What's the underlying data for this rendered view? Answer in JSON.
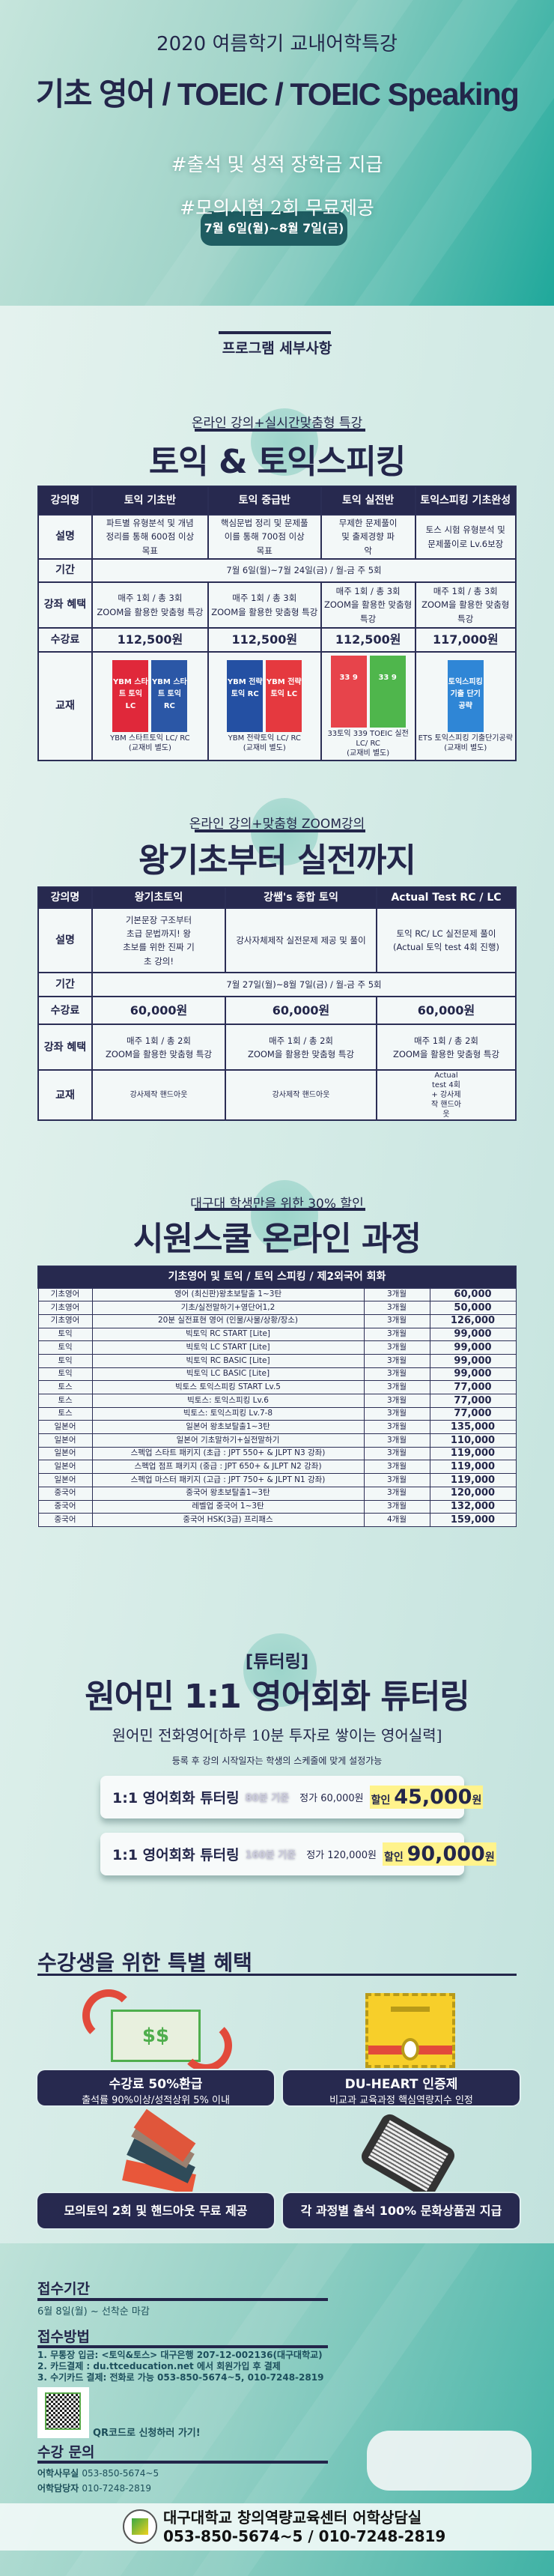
{
  "hero": {
    "subtitle": "2020 여름학기 교내어학특강",
    "title": "기초 영어 / TOEIC / TOEIC Speaking",
    "date": "7월 6일(월)~8월 7일(금)",
    "tag1": "#출석 및 성적 장학금 지급",
    "tag2": "#모의시험 2회 무료제공"
  },
  "program_heading": "프로그램 세부사항",
  "sec1": {
    "sub": "온라인 강의+실시간맞춤형 특강",
    "title": "토익 & 토익스피킹",
    "labels": {
      "name": "강의명",
      "desc": "설명",
      "period": "기간",
      "benefit": "강좌 혜택",
      "fee": "수강료",
      "book": "교재"
    },
    "period": "7월 6일(월)~7월 24일(금) / 월-금  주 5회",
    "courses": [
      {
        "name": "토익 기초반",
        "desc": "파트별 유형분석 및 개념정리를 통해 600점 이상 목표",
        "benefit1": "매주 1회 / 총 3회",
        "benefit2": "ZOOM을 활용한 맞춤형 특강",
        "fee": "112,500원",
        "book": "YBM 스타트토익 LC/ RC",
        "book_note": "(교재비 별도)",
        "covers": [
          {
            "t": "YBM 스타트 토익 LC",
            "c": "#e0283a"
          },
          {
            "t": "YBM 스타트 토익 RC",
            "c": "#2b57a6"
          }
        ]
      },
      {
        "name": "토익 중급반",
        "desc": "핵심문법 정리 및 문제풀이를 통해 700점 이상 목표",
        "benefit1": "매주 1회 / 총 3회",
        "benefit2": "ZOOM을 활용한 맞춤형 특강",
        "fee": "112,500원",
        "book": "YBM 전략토익 LC/ RC",
        "book_note": "(교재비 별도)",
        "covers": [
          {
            "t": "YBM 전략토익 RC",
            "c": "#2450a3"
          },
          {
            "t": "YBM 전략토익 LC",
            "c": "#e5393f"
          }
        ]
      },
      {
        "name": "토익 실전반",
        "desc": "무제한 문제풀이 및 출제경향 파악",
        "benefit1": "매주 1회 / 총 3회",
        "benefit2": "ZOOM을 활용한 맞춤형 특강",
        "fee": "112,500원",
        "book": "33토익 339 TOEIC 실전 LC/ RC",
        "book_note": "(교재비 별도)",
        "covers": [
          {
            "t": "33 9",
            "c": "#e7444b"
          },
          {
            "t": "33 9",
            "c": "#4fb64c"
          }
        ]
      },
      {
        "name": "토익스피킹 기초완성",
        "desc": "토스 시험 유형분석 및 문제풀이로 Lv.6보장",
        "benefit1": "매주 1회 / 총 3회",
        "benefit2": "ZOOM을 활용한 맞춤형 특강",
        "fee": "117,000원",
        "book": "ETS 토익스피킹 기출단기공략",
        "book_note": "(교재비 별도)",
        "covers": [
          {
            "t": "토익스피킹 기출 단기공략",
            "c": "#2f86d6"
          }
        ]
      }
    ]
  },
  "sec2": {
    "sub": "온라인 강의+맞춤형 ZOOM강의",
    "title": "왕기초부터 실전까지",
    "period": "7월 27일(월)~8월 7일(금) / 월-금  주 5회",
    "courses": [
      {
        "name": "왕기초토익",
        "desc": "기본문장 구조부터 초급 문법까지! 왕초보를 위한 진짜 기초 강의!",
        "fee": "60,000원",
        "benefit1": "매주 1회 / 총 2회",
        "benefit2": "ZOOM을 활용한 맞춤형 특강",
        "book": "강사제작 핸드아웃"
      },
      {
        "name": "강쌤's 종합 토익",
        "desc": "강사자체제작 실전문제 제공 및 풀이",
        "fee": "60,000원",
        "benefit1": "매주 1회 / 총 2회",
        "benefit2": "ZOOM을 활용한 맞춤형 특강",
        "book": "강사제작 핸드아웃"
      },
      {
        "name": "Actual Test RC / LC",
        "desc": "토익 RC/ LC 실전문제 풀이 (Actual 토익 test 4회 진행)",
        "fee": "60,000원",
        "benefit1": "매주 1회 / 총 2회",
        "benefit2": "ZOOM을 활용한 맞춤형 특강",
        "book": "Actual test 4회 + 강사제작 핸드아웃"
      }
    ]
  },
  "sec3": {
    "sub": "대구대 학생만을 위한 30% 할인",
    "title": "시원스쿨 온라인 과정",
    "header": "기초영어 및 토익 / 토익 스피킹 / 제2외국어 회화",
    "rows": [
      [
        "기초영어",
        "영어 (최신판)왕초보탈출 1~3탄",
        "3개월",
        "60,000"
      ],
      [
        "기초영어",
        "기초/실전말하기+영단어1,2",
        "3개월",
        "50,000"
      ],
      [
        "기초영어",
        "20분 실전표현 영어 (인물/사물/상황/장소)",
        "3개월",
        "126,000"
      ],
      [
        "토익",
        "빅토익 RC START [Lite]",
        "3개월",
        "99,000"
      ],
      [
        "토익",
        "빅토익 LC START [Lite]",
        "3개월",
        "99,000"
      ],
      [
        "토익",
        "빅토익 RC BASIC [Lite]",
        "3개월",
        "99,000"
      ],
      [
        "토익",
        "빅토익 LC BASIC [Lite]",
        "3개월",
        "99,000"
      ],
      [
        "토스",
        "빅토스 토익스피킹 START Lv.5",
        "3개월",
        "77,000"
      ],
      [
        "토스",
        "빅토스: 토익스피킹 Lv.6",
        "3개월",
        "77,000"
      ],
      [
        "토스",
        "빅토스: 토익스피킹 Lv.7-8",
        "3개월",
        "77,000"
      ],
      [
        "일본어",
        "일본어 왕초보탈출1~3탄",
        "3개월",
        "135,000"
      ],
      [
        "일본어",
        "일본어 기초말하기+실전말하기",
        "3개월",
        "110,000"
      ],
      [
        "일본어",
        "스펙업 스타트 패키지 (초급 : JPT 550+ & JLPT N3 강좌)",
        "3개월",
        "119,000"
      ],
      [
        "일본어",
        "스펙업 점프 패키지 (중급 : JPT 650+ & JLPT N2 강좌)",
        "3개월",
        "119,000"
      ],
      [
        "일본어",
        "스펙업 마스터 패키지 (고급 : JPT 750+ & JLPT N1 강좌)",
        "3개월",
        "119,000"
      ],
      [
        "중국어",
        "중국어 왕초보탈출1~3탄",
        "3개월",
        "120,000"
      ],
      [
        "중국어",
        "레벨업 중국어 1~3탄",
        "3개월",
        "132,000"
      ],
      [
        "중국어",
        "중국어 HSK(3급) 프리패스",
        "4개월",
        "159,000"
      ]
    ]
  },
  "tutor": {
    "tag": "[튜터링]",
    "title": "원어민 1:1 영어회화 튜터링",
    "hand": "원어민 전화영어[하루 10분 투자로 쌓이는 영어실력]",
    "note": "등록 후 강의 시작일자는 학생의 스케줄에 맞게 설정가능",
    "plans": [
      {
        "name": "1:1 영어회화 튜터링",
        "basis": "80분 기준",
        "regular": "정가 60,000원",
        "disc_label": "할인",
        "price": "45,000",
        "unit": "원"
      },
      {
        "name": "1:1 영어회화 튜터링",
        "basis": "160분 기준",
        "regular": "정가 120,000원",
        "disc_label": "할인",
        "price": "90,000",
        "unit": "원"
      }
    ]
  },
  "benefits": {
    "title": "수강생을 위한 특별 혜택",
    "items": [
      {
        "title": "수강료 50%환급",
        "sub": "출석률 90%이상/성적상위 5% 이내",
        "icon": "money-refund-icon",
        "glyph": "$$"
      },
      {
        "title": "DU-HEART 인증제",
        "sub": "비교과 교육과정 핵심역량지수 인정",
        "icon": "certificate-icon"
      },
      {
        "title": "모의토익 2회 및 핸드아웃 무료 제공",
        "icon": "books-icon"
      },
      {
        "title": "각 과정별 출석 100% 문화상품권 지급",
        "icon": "ebook-reader-icon"
      }
    ]
  },
  "footer": {
    "period_h": "접수기간",
    "period": "6월 8일(월) ~ 선착순 마감",
    "method_h": "접수방법",
    "methods": [
      "1. 무통장 입금: <토익&토스> 대구은행 207-12-002136(대구대학교)",
      "2. 카드결제 : du.ttceducation.net 에서 회원가입 후 결제",
      "3. 수기카드 결제: 전화로 가능 053-850-5674~5, 010-7248-2819"
    ],
    "qr_text": "QR코드로 신청하러 가기!",
    "qr_logo": "대구대학교",
    "contact_h": "수강 문의",
    "contacts": [
      {
        "label": "어학사무실",
        "value": "053-850-5674~5"
      },
      {
        "label": "어학담당자",
        "value": "010-7248-2819"
      }
    ],
    "org": "대구대학교 창의역량교육센터 어학상담실",
    "phones": "053-850-5674~5 / 010-7248-2819"
  },
  "colors": {
    "navy": "#27294f",
    "teal": "#1fa89b",
    "highlight": "#fff38c"
  }
}
